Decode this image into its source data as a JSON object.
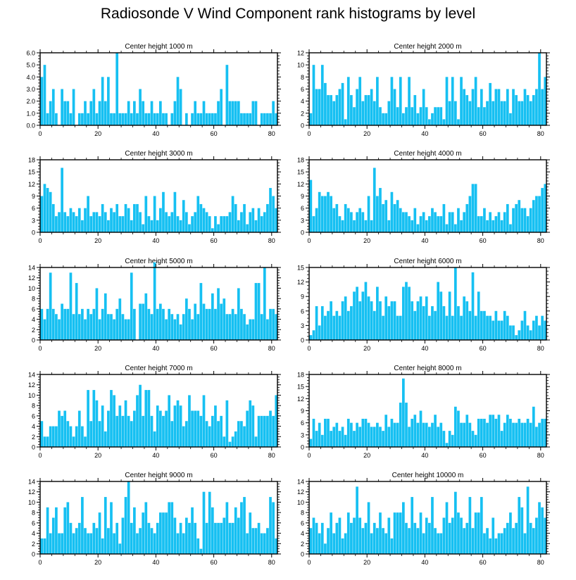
{
  "title": "Radiosonde V Wind Component rank histograms by level",
  "bar_color": "#16c0f2",
  "chart_data": [
    {
      "type": "bar",
      "title": "Center height 1000 m",
      "xlabel": "",
      "ylabel": "",
      "xlim": [
        0,
        82
      ],
      "ylim": [
        0,
        6
      ],
      "yticks": [
        0,
        1,
        2,
        3,
        4,
        5,
        6
      ],
      "ytick_labels": [
        "0.0",
        "1.0",
        "2.0",
        "3.0",
        "4.0",
        "5.0",
        "6.0"
      ],
      "xticks": [
        0,
        20,
        40,
        60,
        80
      ],
      "xtick_labels": [
        "0",
        "20",
        "40",
        "60",
        "80"
      ],
      "values": [
        4,
        5,
        1,
        2,
        3,
        1,
        0,
        3,
        2,
        2,
        1,
        3,
        0,
        1,
        1,
        2,
        1,
        2,
        3,
        1,
        2,
        4,
        2,
        4,
        1,
        1,
        6,
        1,
        1,
        1,
        2,
        1,
        2,
        1,
        3,
        2,
        1,
        1,
        2,
        1,
        1,
        2,
        1,
        1,
        0,
        1,
        2,
        4,
        3,
        0,
        1,
        0,
        1,
        2,
        1,
        1,
        2,
        1,
        1,
        1,
        1,
        2,
        3,
        0,
        5,
        2,
        2,
        2,
        2,
        1,
        1,
        1,
        1,
        2,
        2,
        0,
        1,
        1,
        1,
        1,
        2,
        1
      ],
      "bar_width_scale": 0.9
    },
    {
      "type": "bar",
      "title": "Center height 2000 m",
      "xlabel": "",
      "ylabel": "",
      "xlim": [
        0,
        82
      ],
      "ylim": [
        0,
        12
      ],
      "yticks": [
        0,
        2,
        4,
        6,
        8,
        10,
        12
      ],
      "ytick_labels": [
        "0",
        "2",
        "4",
        "6",
        "8",
        "10",
        "12"
      ],
      "xticks": [
        0,
        20,
        40,
        60,
        80
      ],
      "xtick_labels": [
        "0",
        "20",
        "40",
        "60",
        "80"
      ],
      "values": [
        2,
        10,
        6,
        6,
        10,
        7,
        5,
        5,
        4,
        5,
        6,
        7,
        1,
        8,
        5,
        3,
        6,
        8,
        4,
        5,
        5,
        6,
        4,
        8,
        3,
        2,
        2,
        4,
        8,
        6,
        3,
        8,
        2,
        3,
        8,
        3,
        5,
        2,
        3,
        6,
        3,
        1,
        2,
        3,
        3,
        3,
        1,
        8,
        4,
        8,
        4,
        1,
        8,
        6,
        5,
        4,
        6,
        8,
        3,
        6,
        3,
        4,
        7,
        4,
        6,
        6,
        4,
        4,
        6,
        2,
        6,
        5,
        4,
        4,
        6,
        5,
        4,
        5,
        6,
        12,
        6,
        8
      ],
      "bar_width_scale": 0.9
    },
    {
      "type": "bar",
      "title": "Center height 3000 m",
      "xlabel": "",
      "ylabel": "",
      "xlim": [
        0,
        82
      ],
      "ylim": [
        0,
        18
      ],
      "yticks": [
        0,
        3,
        6,
        9,
        12,
        15,
        18
      ],
      "ytick_labels": [
        "0",
        "3",
        "6",
        "9",
        "12",
        "15",
        "18"
      ],
      "xticks": [
        0,
        20,
        40,
        60,
        80
      ],
      "xtick_labels": [
        "0",
        "20",
        "40",
        "60",
        "80"
      ],
      "values": [
        9,
        12,
        11,
        10,
        7,
        4,
        5,
        16,
        5,
        4,
        6,
        5,
        4,
        6,
        3,
        6,
        9,
        4,
        5,
        5,
        4,
        7,
        5,
        3,
        6,
        5,
        7,
        4,
        4,
        7,
        6,
        3,
        7,
        7,
        5,
        2,
        9,
        4,
        3,
        9,
        3,
        6,
        10,
        5,
        4,
        5,
        10,
        4,
        3,
        8,
        5,
        2,
        4,
        5,
        9,
        7,
        6,
        5,
        4,
        1,
        4,
        2,
        4,
        4,
        4,
        5,
        9,
        7,
        3,
        5,
        7,
        2,
        5,
        6,
        3,
        6,
        4,
        5,
        7,
        11,
        9,
        6
      ],
      "bar_width_scale": 0.9
    },
    {
      "type": "bar",
      "title": "Center height 4000 m",
      "xlabel": "",
      "ylabel": "",
      "xlim": [
        0,
        82
      ],
      "ylim": [
        0,
        18
      ],
      "yticks": [
        0,
        3,
        6,
        9,
        12,
        15,
        18
      ],
      "ytick_labels": [
        "0",
        "3",
        "6",
        "9",
        "12",
        "15",
        "18"
      ],
      "xticks": [
        0,
        20,
        40,
        60,
        80
      ],
      "xtick_labels": [
        "0",
        "20",
        "40",
        "60",
        "80"
      ],
      "values": [
        13,
        4,
        6,
        10,
        9,
        9,
        10,
        9,
        6,
        7,
        4,
        3,
        7,
        6,
        5,
        3,
        5,
        6,
        5,
        3,
        9,
        3,
        16,
        9,
        11,
        7,
        8,
        3,
        10,
        7,
        8,
        6,
        5,
        5,
        4,
        3,
        6,
        2,
        4,
        5,
        3,
        4,
        6,
        5,
        4,
        4,
        7,
        2,
        5,
        5,
        2,
        6,
        3,
        5,
        7,
        9,
        12,
        12,
        4,
        4,
        6,
        3,
        5,
        3,
        4,
        5,
        3,
        5,
        7,
        2,
        6,
        7,
        8,
        6,
        6,
        4,
        6,
        8,
        9,
        9,
        11,
        12
      ],
      "bar_width_scale": 0.9
    },
    {
      "type": "bar",
      "title": "Center height 5000 m",
      "xlabel": "",
      "ylabel": "",
      "xlim": [
        0,
        82
      ],
      "ylim": [
        0,
        14
      ],
      "yticks": [
        0,
        2,
        4,
        6,
        8,
        10,
        12,
        14
      ],
      "ytick_labels": [
        "0",
        "2",
        "4",
        "6",
        "8",
        "10",
        "12",
        "14"
      ],
      "xticks": [
        0,
        20,
        40,
        60,
        80
      ],
      "xtick_labels": [
        "0",
        "20",
        "40",
        "60",
        "80"
      ],
      "values": [
        6,
        4,
        6,
        13,
        6,
        5,
        4,
        7,
        6,
        6,
        13,
        5,
        11,
        5,
        6,
        4,
        6,
        5,
        6,
        10,
        4,
        6,
        9,
        5,
        5,
        4,
        6,
        8,
        5,
        4,
        4,
        13,
        6,
        0,
        7,
        7,
        9,
        6,
        5,
        15,
        6,
        7,
        6,
        4,
        6,
        5,
        4,
        5,
        3,
        5,
        8,
        6,
        4,
        7,
        5,
        11,
        7,
        6,
        6,
        9,
        6,
        10,
        7,
        8,
        5,
        5,
        6,
        5,
        10,
        6,
        5,
        3,
        4,
        4,
        11,
        11,
        5,
        14,
        4,
        6,
        6,
        5
      ],
      "bar_width_scale": 0.9
    },
    {
      "type": "bar",
      "title": "Center height 6000 m",
      "xlabel": "",
      "ylabel": "",
      "xlim": [
        0,
        82
      ],
      "ylim": [
        0,
        15
      ],
      "yticks": [
        0,
        3,
        6,
        9,
        12,
        15
      ],
      "ytick_labels": [
        "0",
        "3",
        "6",
        "9",
        "12",
        "15"
      ],
      "xticks": [
        0,
        20,
        40,
        60,
        80
      ],
      "xtick_labels": [
        "0",
        "20",
        "40",
        "60",
        "80"
      ],
      "values": [
        1,
        2,
        7,
        3,
        7,
        5,
        6,
        8,
        5,
        6,
        5,
        8,
        9,
        6,
        7,
        10,
        11,
        8,
        10,
        12,
        9,
        8,
        6,
        11,
        8,
        5,
        9,
        7,
        8,
        8,
        5,
        5,
        11,
        12,
        11,
        8,
        6,
        8,
        9,
        7,
        9,
        5,
        7,
        6,
        12,
        10,
        7,
        5,
        10,
        5,
        15,
        7,
        5,
        9,
        8,
        6,
        14,
        5,
        10,
        6,
        6,
        5,
        5,
        4,
        6,
        4,
        4,
        6,
        5,
        3,
        3,
        1,
        2,
        4,
        6,
        3,
        2,
        4,
        5,
        3,
        5,
        4
      ],
      "bar_width_scale": 0.9
    },
    {
      "type": "bar",
      "title": "Center height 7000 m",
      "xlabel": "",
      "ylabel": "",
      "xlim": [
        0,
        82
      ],
      "ylim": [
        0,
        14
      ],
      "yticks": [
        0,
        2,
        4,
        6,
        8,
        10,
        12,
        14
      ],
      "ytick_labels": [
        "0",
        "2",
        "4",
        "6",
        "8",
        "10",
        "12",
        "14"
      ],
      "xticks": [
        0,
        20,
        40,
        60,
        80
      ],
      "xtick_labels": [
        "0",
        "20",
        "40",
        "60",
        "80"
      ],
      "values": [
        5,
        2,
        2,
        4,
        4,
        4,
        7,
        6,
        7,
        5,
        4,
        2,
        4,
        7,
        4,
        2,
        11,
        5,
        11,
        9,
        5,
        8,
        3,
        7,
        11,
        10,
        6,
        8,
        6,
        9,
        6,
        5,
        7,
        10,
        12,
        6,
        11,
        11,
        6,
        3,
        8,
        7,
        6,
        7,
        10,
        5,
        8,
        9,
        8,
        4,
        5,
        10,
        7,
        7,
        7,
        6,
        10,
        5,
        4,
        6,
        8,
        5,
        6,
        2,
        9,
        1,
        2,
        3,
        5,
        5,
        4,
        7,
        9,
        8,
        2,
        6,
        6,
        6,
        6,
        7,
        6,
        10
      ],
      "bar_width_scale": 0.9
    },
    {
      "type": "bar",
      "title": "Center height 8000 m",
      "xlabel": "",
      "ylabel": "",
      "xlim": [
        0,
        82
      ],
      "ylim": [
        0,
        18
      ],
      "yticks": [
        0,
        3,
        6,
        9,
        12,
        15,
        18
      ],
      "ytick_labels": [
        "0",
        "3",
        "6",
        "9",
        "12",
        "15",
        "18"
      ],
      "xticks": [
        0,
        20,
        40,
        60,
        80
      ],
      "xtick_labels": [
        "0",
        "20",
        "40",
        "60",
        "80"
      ],
      "values": [
        2,
        7,
        4,
        6,
        3,
        7,
        7,
        4,
        5,
        6,
        4,
        5,
        3,
        7,
        6,
        4,
        6,
        5,
        7,
        7,
        6,
        5,
        5,
        6,
        5,
        4,
        8,
        5,
        7,
        6,
        6,
        11,
        17,
        11,
        5,
        7,
        8,
        6,
        9,
        6,
        6,
        5,
        6,
        8,
        5,
        6,
        4,
        1,
        4,
        3,
        10,
        9,
        6,
        6,
        8,
        6,
        4,
        3,
        7,
        7,
        7,
        6,
        8,
        8,
        7,
        8,
        4,
        6,
        8,
        7,
        6,
        6,
        7,
        6,
        6,
        7,
        6,
        10,
        5,
        6,
        7,
        7
      ],
      "bar_width_scale": 0.9
    },
    {
      "type": "bar",
      "title": "Center height 9000 m",
      "xlabel": "",
      "ylabel": "",
      "xlim": [
        0,
        82
      ],
      "ylim": [
        0,
        14
      ],
      "yticks": [
        0,
        2,
        4,
        6,
        8,
        10,
        12,
        14
      ],
      "ytick_labels": [
        "0",
        "2",
        "4",
        "6",
        "8",
        "10",
        "12",
        "14"
      ],
      "xticks": [
        0,
        20,
        40,
        60,
        80
      ],
      "xtick_labels": [
        "0",
        "20",
        "40",
        "60",
        "80"
      ],
      "values": [
        3,
        3,
        9,
        4,
        7,
        9,
        4,
        4,
        9,
        10,
        6,
        4,
        5,
        6,
        11,
        5,
        4,
        4,
        6,
        5,
        8,
        3,
        11,
        5,
        10,
        4,
        6,
        2,
        7,
        11,
        14,
        6,
        9,
        4,
        5,
        8,
        10,
        6,
        5,
        4,
        6,
        8,
        8,
        8,
        10,
        10,
        7,
        4,
        6,
        4,
        7,
        6,
        9,
        6,
        3,
        1,
        12,
        6,
        12,
        9,
        6,
        6,
        6,
        7,
        10,
        6,
        6,
        9,
        7,
        10,
        11,
        4,
        8,
        5,
        5,
        6,
        4,
        4,
        5,
        11,
        10,
        3
      ],
      "bar_width_scale": 0.9
    },
    {
      "type": "bar",
      "title": "Center height 10000 m",
      "xlabel": "",
      "ylabel": "",
      "xlim": [
        0,
        82
      ],
      "ylim": [
        0,
        14
      ],
      "yticks": [
        0,
        2,
        4,
        6,
        8,
        10,
        12,
        14
      ],
      "ytick_labels": [
        "0",
        "2",
        "4",
        "6",
        "8",
        "10",
        "12",
        "14"
      ],
      "xticks": [
        0,
        20,
        40,
        60,
        80
      ],
      "xtick_labels": [
        "0",
        "20",
        "40",
        "60",
        "80"
      ],
      "values": [
        5,
        7,
        6,
        4,
        6,
        2,
        5,
        8,
        4,
        6,
        7,
        3,
        4,
        8,
        6,
        7,
        13,
        7,
        5,
        6,
        10,
        4,
        6,
        5,
        8,
        5,
        4,
        7,
        3,
        8,
        8,
        8,
        10,
        6,
        5,
        11,
        6,
        5,
        8,
        4,
        7,
        6,
        11,
        5,
        4,
        4,
        7,
        10,
        6,
        7,
        12,
        8,
        7,
        5,
        6,
        11,
        5,
        8,
        8,
        11,
        4,
        5,
        3,
        7,
        3,
        4,
        4,
        5,
        6,
        8,
        5,
        6,
        11,
        9,
        4,
        13,
        6,
        5,
        7,
        10,
        9,
        7
      ],
      "bar_width_scale": 0.9
    }
  ]
}
